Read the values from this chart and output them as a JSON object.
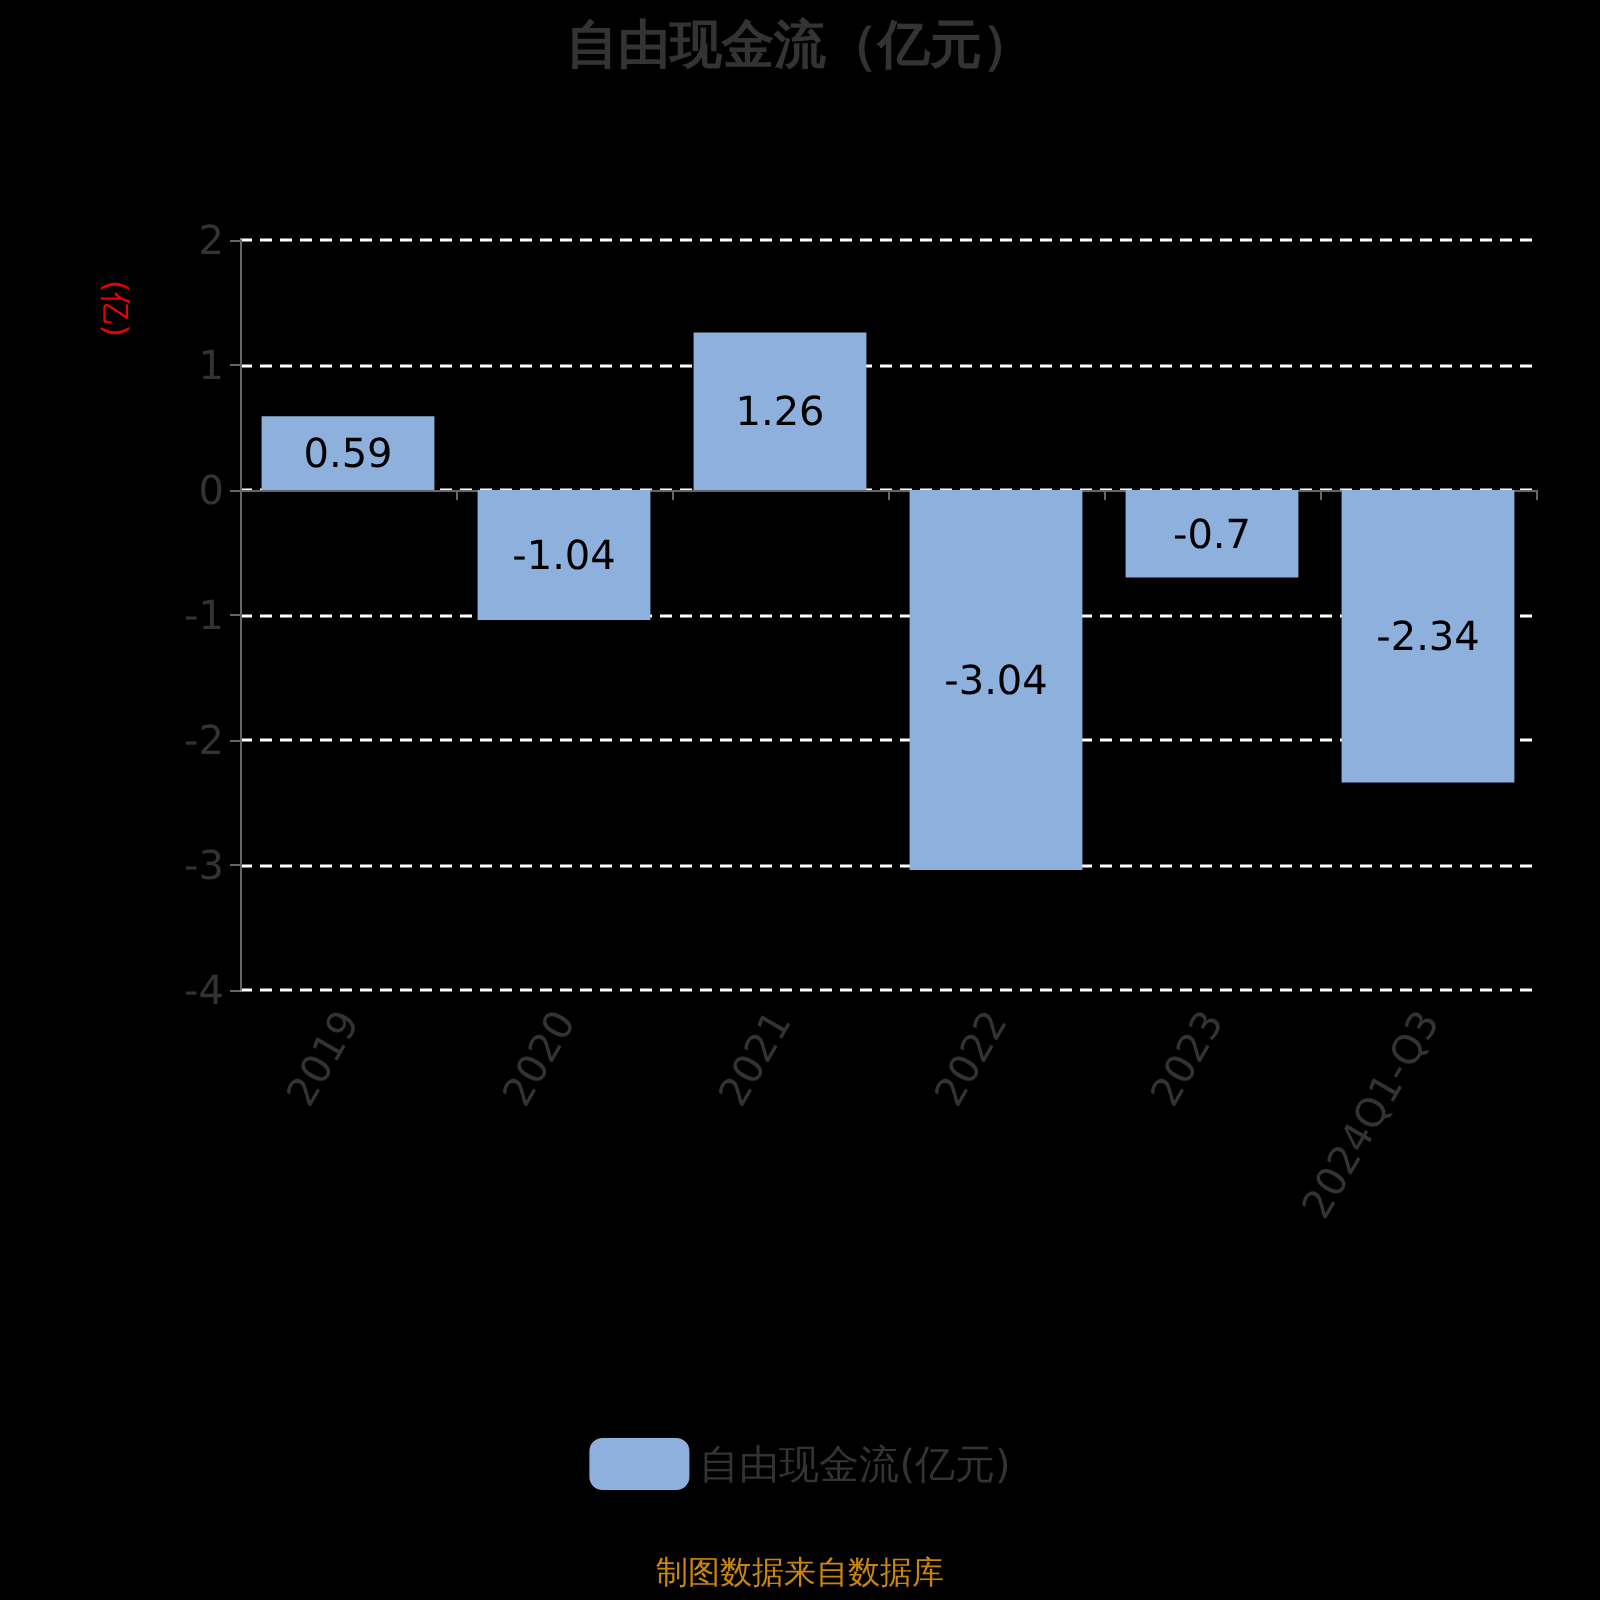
{
  "chart_data": {
    "type": "bar",
    "title": "自由现金流（亿元）",
    "ylabel": "(亿)",
    "categories": [
      "2019",
      "2020",
      "2021",
      "2022",
      "2023",
      "2024Q1-Q3"
    ],
    "series": [
      {
        "name": "自由现金流(亿元)",
        "color": "#8eb0dc",
        "values": [
          0.59,
          -1.04,
          1.26,
          -3.04,
          -0.7,
          -2.34
        ]
      }
    ],
    "ylim": [
      -4,
      2
    ],
    "yticks": [
      -4,
      -3,
      -2,
      -1,
      0,
      1,
      2
    ],
    "grid": "y",
    "legend": "bottom",
    "data_labels": true,
    "annotations": [
      "制图数据来自数据库"
    ]
  }
}
